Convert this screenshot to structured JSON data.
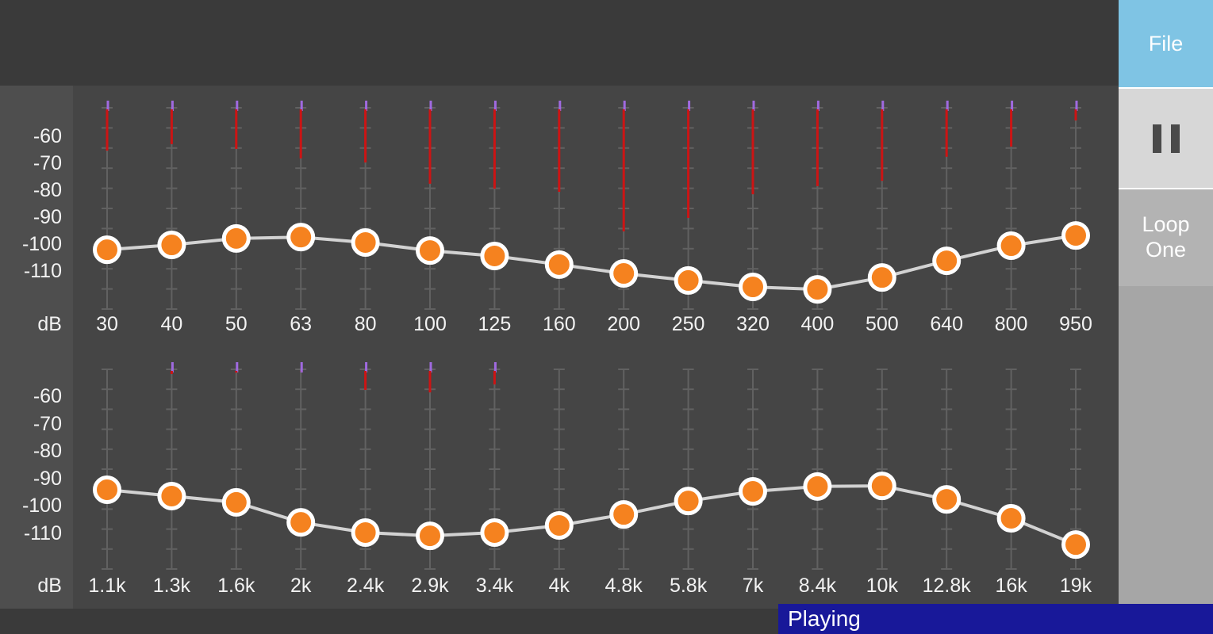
{
  "sidebar": {
    "file_button_label": "File",
    "loop_button_label": "Loop One",
    "pause_icon": "pause-bars"
  },
  "status_bar": {
    "text": "Playing"
  },
  "colors": {
    "background": "#3a3a3a",
    "eq_area": "#454545",
    "panel": "#4e4e4e",
    "file_button": "#7fc4e4",
    "pause_button": "#d7d7d7",
    "loop_button": "#b3b3b3",
    "sidebar_lower": "#a6a6a6",
    "status_bar": "#181899",
    "knob": "#f5821f",
    "knob_border": "#ffffff",
    "curve": "#d2d2d2",
    "meter_red": "#cc1414",
    "meter_purple": "#a06ae0",
    "track": "#616161",
    "text": "#f2f2f2"
  },
  "chart_data": [
    {
      "type": "eq-slider-row",
      "row": "low-frequencies",
      "unit": "dB",
      "yticks": [
        -60,
        -70,
        -80,
        -90,
        -100,
        -110
      ],
      "ylim": [
        -120,
        -45
      ],
      "categories": [
        "30",
        "40",
        "50",
        "63",
        "80",
        "100",
        "125",
        "160",
        "200",
        "250",
        "320",
        "400",
        "500",
        "640",
        "800",
        "950"
      ],
      "series": [
        {
          "name": "slider_gain_db",
          "values": [
            -102.1,
            -100.3,
            -97.9,
            -97.4,
            -99.4,
            -102.4,
            -104.4,
            -107.6,
            -110.9,
            -113.5,
            -115.9,
            -116.8,
            -112.4,
            -106.2,
            -100.6,
            -96.8
          ]
        },
        {
          "name": "spectrum_peak_db",
          "values": [
            -65.3,
            -62.9,
            -64.7,
            -68.2,
            -69.7,
            -77.6,
            -79.4,
            -80.6,
            -95.3,
            -90.3,
            -81.5,
            -78.5,
            -76.5,
            -67.6,
            -63.8,
            -54.1
          ]
        }
      ]
    },
    {
      "type": "eq-slider-row",
      "row": "high-frequencies",
      "unit": "dB",
      "yticks": [
        -60,
        -70,
        -80,
        -90,
        -100,
        -110
      ],
      "ylim": [
        -120,
        -45
      ],
      "categories": [
        "1.1k",
        "1.3k",
        "1.6k",
        "2k",
        "2.4k",
        "2.9k",
        "3.4k",
        "4k",
        "4.8k",
        "5.8k",
        "7k",
        "8.4k",
        "10k",
        "12.8k",
        "16k",
        "19k"
      ],
      "series": [
        {
          "name": "slider_gain_db",
          "values": [
            -94.1,
            -96.4,
            -98.7,
            -106.0,
            -109.7,
            -110.9,
            -109.7,
            -107.1,
            -103.1,
            -98.2,
            -94.7,
            -92.9,
            -92.7,
            -97.6,
            -104.5,
            -114.1
          ]
        },
        {
          "name": "spectrum_peak_db",
          "values": [
            null,
            -51.9,
            -51.4,
            -50.8,
            -57.7,
            -58.6,
            -55.7,
            null,
            null,
            null,
            null,
            null,
            null,
            null,
            null,
            null
          ]
        }
      ]
    }
  ]
}
